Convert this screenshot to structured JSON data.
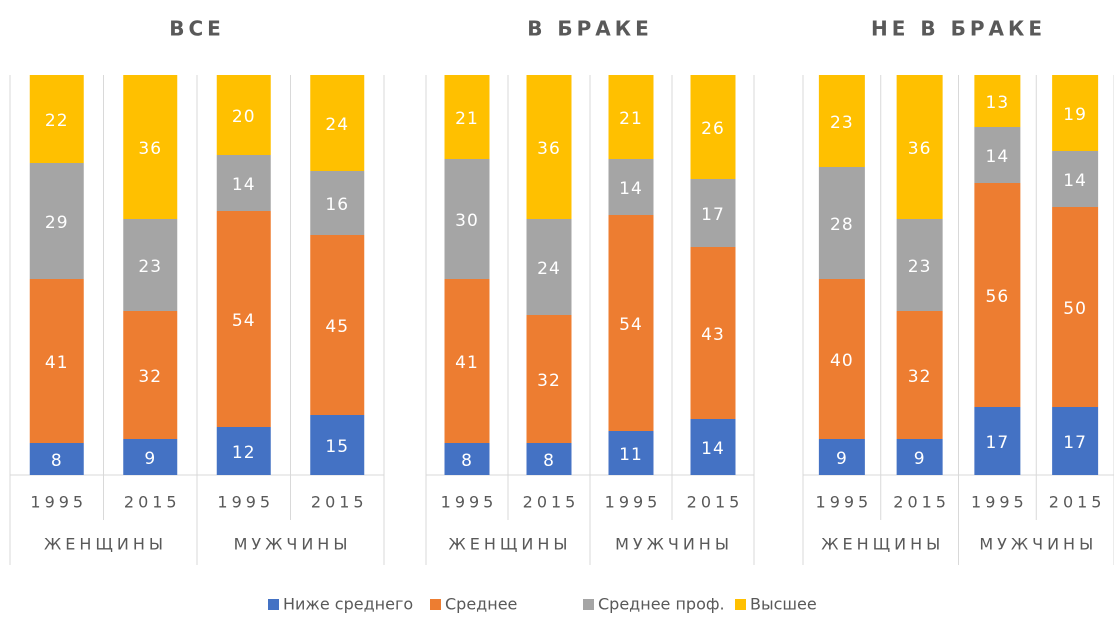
{
  "legend": [
    {
      "name": "Ниже среднего",
      "color": "#4472c4"
    },
    {
      "name": "Среднее",
      "color": "#ed7d31"
    },
    {
      "name": "Среднее проф.",
      "color": "#a5a5a5"
    },
    {
      "name": "Высшее",
      "color": "#ffc000"
    }
  ],
  "chart_data": [
    {
      "type": "stacked_bar",
      "title": "ВСЕ",
      "categories": [
        "1995",
        "2015",
        "1995",
        "2015"
      ],
      "groups": [
        "ЖЕНЩИНЫ",
        "МУЖЧИНЫ"
      ],
      "ylim": [
        0,
        100
      ],
      "series": [
        {
          "values": [
            8,
            9,
            12,
            15
          ]
        },
        {
          "values": [
            41,
            32,
            54,
            45
          ]
        },
        {
          "values": [
            29,
            23,
            14,
            16
          ]
        },
        {
          "values": [
            22,
            36,
            20,
            24
          ]
        }
      ]
    },
    {
      "type": "stacked_bar",
      "title": "В БРАКЕ",
      "categories": [
        "1995",
        "2015",
        "1995",
        "2015"
      ],
      "groups": [
        "ЖЕНЩИНЫ",
        "МУЖЧИНЫ"
      ],
      "ylim": [
        0,
        100
      ],
      "series": [
        {
          "values": [
            8,
            8,
            11,
            14
          ]
        },
        {
          "values": [
            41,
            32,
            54,
            43
          ]
        },
        {
          "values": [
            30,
            24,
            14,
            17
          ]
        },
        {
          "values": [
            21,
            36,
            21,
            26
          ]
        }
      ]
    },
    {
      "type": "stacked_bar",
      "title": "НЕ В БРАКЕ",
      "categories": [
        "1995",
        "2015",
        "1995",
        "2015"
      ],
      "groups": [
        "ЖЕНЩИНЫ",
        "МУЖЧИНЫ"
      ],
      "ylim": [
        0,
        100
      ],
      "series": [
        {
          "values": [
            9,
            9,
            17,
            17
          ]
        },
        {
          "values": [
            40,
            32,
            56,
            50
          ]
        },
        {
          "values": [
            28,
            23,
            14,
            14
          ]
        },
        {
          "values": [
            23,
            36,
            13,
            19
          ]
        }
      ]
    }
  ]
}
